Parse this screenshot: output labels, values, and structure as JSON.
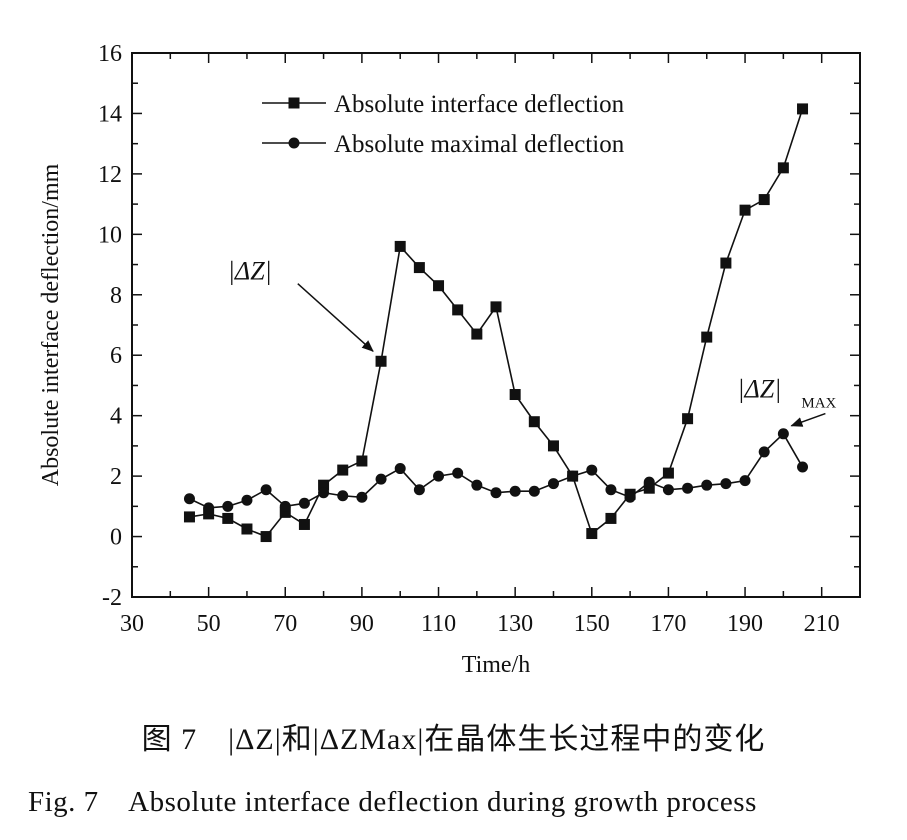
{
  "chart_data": {
    "type": "line",
    "xlabel": "Time/h",
    "ylabel": "Absolute interface deflection/mm",
    "xlim": [
      30,
      220
    ],
    "ylim": [
      -2,
      16
    ],
    "x_ticks": [
      30,
      50,
      70,
      90,
      110,
      130,
      150,
      170,
      190,
      210
    ],
    "y_ticks": [
      -2,
      0,
      2,
      4,
      6,
      8,
      10,
      12,
      14,
      16
    ],
    "legend_position": "top-center",
    "grid": false,
    "series": [
      {
        "name": "Absolute interface deflection",
        "marker": "square",
        "x": [
          45,
          50,
          55,
          60,
          65,
          70,
          75,
          80,
          85,
          90,
          95,
          100,
          105,
          110,
          115,
          120,
          125,
          130,
          135,
          140,
          145,
          150,
          155,
          160,
          165,
          170,
          175,
          180,
          185,
          190,
          195,
          200,
          205
        ],
        "y": [
          0.65,
          0.75,
          0.6,
          0.25,
          0.0,
          0.8,
          0.4,
          1.7,
          2.2,
          2.5,
          5.8,
          9.6,
          8.9,
          8.3,
          7.5,
          6.7,
          7.6,
          4.7,
          3.8,
          3.0,
          2.0,
          0.1,
          0.6,
          1.4,
          1.6,
          2.1,
          3.9,
          6.6,
          9.05,
          10.8,
          11.15,
          12.2,
          14.15
        ]
      },
      {
        "name": "Absolute maximal deflection",
        "marker": "circle",
        "x": [
          45,
          50,
          55,
          60,
          65,
          70,
          75,
          80,
          85,
          90,
          95,
          100,
          105,
          110,
          115,
          120,
          125,
          130,
          135,
          140,
          145,
          150,
          155,
          160,
          165,
          170,
          175,
          180,
          185,
          190,
          195,
          200,
          205
        ],
        "y": [
          1.25,
          0.95,
          1.0,
          1.2,
          1.55,
          1.0,
          1.1,
          1.45,
          1.35,
          1.3,
          1.9,
          2.25,
          1.55,
          2.0,
          2.1,
          1.7,
          1.45,
          1.5,
          1.5,
          1.75,
          2.0,
          2.2,
          1.55,
          1.3,
          1.8,
          1.55,
          1.6,
          1.7,
          1.75,
          1.85,
          2.8,
          3.4,
          2.3
        ]
      }
    ],
    "annotations": [
      {
        "text": "|ΔZ|",
        "subscript": "",
        "target_series": 0,
        "target_x": 95,
        "label_x": 55,
        "label_y": 8.5
      },
      {
        "text": "|ΔZ|",
        "subscript": "MAX",
        "target_series": 1,
        "target_x": 200,
        "label_x": 188,
        "label_y": 4.6
      }
    ]
  },
  "captions": {
    "cn": "图 7　|ΔZ|和|ΔZMax|在晶体生长过程中的变化",
    "en": "Fig. 7　Absolute interface deflection during growth process"
  },
  "colors": {
    "ink": "#111111",
    "background": "#ffffff"
  }
}
